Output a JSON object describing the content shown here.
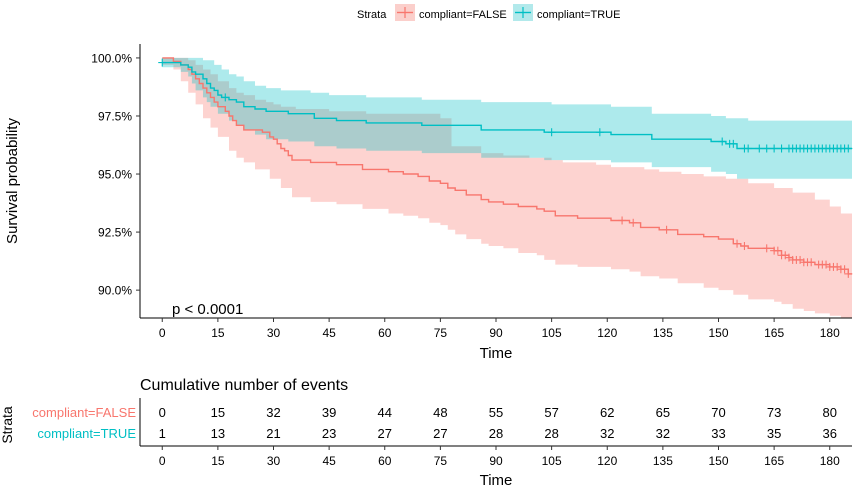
{
  "legend": {
    "title": "Strata",
    "items": [
      {
        "label": "compliant=FALSE",
        "color": "#F8766D"
      },
      {
        "label": "compliant=TRUE",
        "color": "#00BFC4"
      }
    ]
  },
  "chart_data": [
    {
      "type": "line",
      "subtype": "kaplan-meier survival curve with confidence bands",
      "xlabel": "Time",
      "ylabel": "Survival probability",
      "xlim": [
        -6,
        186
      ],
      "ylim": [
        88.8,
        100.6
      ],
      "xticks": [
        0,
        15,
        30,
        45,
        60,
        75,
        90,
        105,
        120,
        135,
        150,
        165,
        180
      ],
      "yticks": [
        90.0,
        92.5,
        95.0,
        97.5,
        100.0
      ],
      "ytick_labels": [
        "90.0%",
        "92.5%",
        "95.0%",
        "97.5%",
        "100.0%"
      ],
      "grid": false,
      "legend_position": "top",
      "annotation": "p < 0.0001",
      "series": [
        {
          "name": "compliant=FALSE",
          "color": "#F8766D",
          "fill": "#FBCFCB",
          "steps": [
            [
              0,
              100.0
            ],
            [
              3,
              99.85
            ],
            [
              5,
              99.7
            ],
            [
              7,
              99.5
            ],
            [
              8,
              99.3
            ],
            [
              9,
              99.1
            ],
            [
              10,
              98.9
            ],
            [
              11,
              98.7
            ],
            [
              12,
              98.5
            ],
            [
              13,
              98.3
            ],
            [
              14,
              98.1
            ],
            [
              15,
              97.9
            ],
            [
              17,
              97.7
            ],
            [
              18,
              97.5
            ],
            [
              19,
              97.3
            ],
            [
              20,
              97.1
            ],
            [
              22,
              96.9
            ],
            [
              27,
              96.8
            ],
            [
              29,
              96.6
            ],
            [
              30,
              96.5
            ],
            [
              31,
              96.3
            ],
            [
              32,
              96.1
            ],
            [
              33,
              96.0
            ],
            [
              34,
              95.8
            ],
            [
              35,
              95.6
            ],
            [
              40,
              95.5
            ],
            [
              47,
              95.4
            ],
            [
              54,
              95.2
            ],
            [
              61,
              95.1
            ],
            [
              65,
              95.0
            ],
            [
              69,
              94.9
            ],
            [
              72,
              94.7
            ],
            [
              75,
              94.6
            ],
            [
              77,
              94.4
            ],
            [
              79,
              94.3
            ],
            [
              82,
              94.1
            ],
            [
              86,
              93.9
            ],
            [
              88,
              93.8
            ],
            [
              92,
              93.7
            ],
            [
              96,
              93.6
            ],
            [
              101,
              93.5
            ],
            [
              103,
              93.4
            ],
            [
              106,
              93.2
            ],
            [
              112,
              93.1
            ],
            [
              121,
              93.0
            ],
            [
              126,
              92.9
            ],
            [
              129,
              92.7
            ],
            [
              134,
              92.6
            ],
            [
              139,
              92.4
            ],
            [
              146,
              92.3
            ],
            [
              150,
              92.2
            ],
            [
              154,
              92.0
            ],
            [
              156,
              91.9
            ],
            [
              158,
              91.8
            ],
            [
              165,
              91.7
            ],
            [
              167,
              91.5
            ],
            [
              169,
              91.4
            ],
            [
              170,
              91.3
            ],
            [
              173,
              91.2
            ],
            [
              176,
              91.1
            ],
            [
              180,
              91.0
            ],
            [
              183,
              90.9
            ],
            [
              185,
              90.7
            ],
            [
              186,
              90.7
            ]
          ],
          "ci_upper": [
            [
              0,
              100.0
            ],
            [
              3,
              100.0
            ],
            [
              7,
              99.9
            ],
            [
              9,
              99.7
            ],
            [
              11,
              99.5
            ],
            [
              13,
              99.3
            ],
            [
              15,
              99.0
            ],
            [
              18,
              98.7
            ],
            [
              20,
              98.5
            ],
            [
              22,
              98.4
            ],
            [
              25,
              98.2
            ],
            [
              28,
              98.1
            ],
            [
              30,
              98.0
            ],
            [
              32,
              97.9
            ],
            [
              36,
              97.8
            ],
            [
              45,
              97.7
            ],
            [
              55,
              97.6
            ],
            [
              65,
              97.6
            ],
            [
              75,
              97.4
            ],
            [
              78,
              96.2
            ],
            [
              86,
              95.9
            ],
            [
              92,
              95.8
            ],
            [
              99,
              95.7
            ],
            [
              105,
              95.6
            ],
            [
              108,
              95.5
            ],
            [
              117,
              95.4
            ],
            [
              121,
              95.3
            ],
            [
              130,
              95.2
            ],
            [
              134,
              95.1
            ],
            [
              140,
              95.0
            ],
            [
              146,
              94.9
            ],
            [
              152,
              94.8
            ],
            [
              158,
              94.6
            ],
            [
              165,
              94.4
            ],
            [
              170,
              94.2
            ],
            [
              176,
              93.9
            ],
            [
              180,
              93.6
            ],
            [
              183,
              93.3
            ],
            [
              186,
              93.1
            ]
          ],
          "ci_lower": [
            [
              0,
              99.7
            ],
            [
              3,
              99.5
            ],
            [
              5,
              99.0
            ],
            [
              7,
              98.5
            ],
            [
              9,
              98.0
            ],
            [
              11,
              97.4
            ],
            [
              13,
              97.0
            ],
            [
              15,
              96.6
            ],
            [
              18,
              96.0
            ],
            [
              20,
              95.7
            ],
            [
              22,
              95.5
            ],
            [
              25,
              95.2
            ],
            [
              29,
              94.8
            ],
            [
              32,
              94.4
            ],
            [
              35,
              94.0
            ],
            [
              40,
              93.8
            ],
            [
              47,
              93.7
            ],
            [
              54,
              93.5
            ],
            [
              61,
              93.3
            ],
            [
              65,
              93.2
            ],
            [
              69,
              93.1
            ],
            [
              72,
              92.9
            ],
            [
              75,
              92.8
            ],
            [
              77,
              92.6
            ],
            [
              79,
              92.4
            ],
            [
              82,
              92.2
            ],
            [
              86,
              92.0
            ],
            [
              88,
              91.9
            ],
            [
              92,
              91.8
            ],
            [
              96,
              91.6
            ],
            [
              101,
              91.5
            ],
            [
              103,
              91.3
            ],
            [
              106,
              91.1
            ],
            [
              112,
              91.0
            ],
            [
              121,
              90.9
            ],
            [
              126,
              90.8
            ],
            [
              129,
              90.6
            ],
            [
              134,
              90.5
            ],
            [
              139,
              90.3
            ],
            [
              146,
              90.1
            ],
            [
              150,
              90.0
            ],
            [
              154,
              89.8
            ],
            [
              158,
              89.6
            ],
            [
              165,
              89.5
            ],
            [
              167,
              89.4
            ],
            [
              170,
              89.2
            ],
            [
              173,
              89.1
            ],
            [
              176,
              89.0
            ],
            [
              180,
              88.9
            ],
            [
              183,
              88.8
            ],
            [
              186,
              88.8
            ]
          ],
          "censor_times": [
            124,
            127,
            136,
            155,
            157,
            163,
            165,
            166,
            167,
            168,
            169,
            170,
            171,
            172,
            173,
            174,
            175,
            177,
            178,
            179,
            180,
            181,
            182,
            183,
            184,
            185
          ]
        },
        {
          "name": "compliant=TRUE",
          "color": "#00BFC4",
          "fill": "#B2E9EB",
          "steps": [
            [
              0,
              99.8
            ],
            [
              5,
              99.7
            ],
            [
              7,
              99.6
            ],
            [
              8,
              99.4
            ],
            [
              9,
              99.3
            ],
            [
              11,
              99.1
            ],
            [
              12,
              98.9
            ],
            [
              13,
              98.7
            ],
            [
              14,
              98.6
            ],
            [
              15,
              98.4
            ],
            [
              16,
              98.3
            ],
            [
              18,
              98.2
            ],
            [
              20,
              98.1
            ],
            [
              22,
              97.9
            ],
            [
              25,
              97.8
            ],
            [
              28,
              97.7
            ],
            [
              34,
              97.6
            ],
            [
              41,
              97.4
            ],
            [
              47,
              97.3
            ],
            [
              55,
              97.2
            ],
            [
              70,
              97.1
            ],
            [
              86,
              96.9
            ],
            [
              103,
              96.8
            ],
            [
              121,
              96.7
            ],
            [
              132,
              96.5
            ],
            [
              148,
              96.4
            ],
            [
              152,
              96.3
            ],
            [
              155,
              96.1
            ],
            [
              186,
              96.1
            ]
          ],
          "ci_upper": [
            [
              0,
              100.0
            ],
            [
              8,
              100.0
            ],
            [
              11,
              99.9
            ],
            [
              14,
              99.7
            ],
            [
              16,
              99.5
            ],
            [
              18,
              99.3
            ],
            [
              20,
              99.2
            ],
            [
              22,
              99.0
            ],
            [
              25,
              98.8
            ],
            [
              28,
              98.7
            ],
            [
              32,
              98.6
            ],
            [
              40,
              98.5
            ],
            [
              45,
              98.4
            ],
            [
              55,
              98.3
            ],
            [
              70,
              98.2
            ],
            [
              86,
              98.1
            ],
            [
              105,
              98.0
            ],
            [
              121,
              97.9
            ],
            [
              132,
              97.6
            ],
            [
              148,
              97.5
            ],
            [
              152,
              97.4
            ],
            [
              158,
              97.3
            ],
            [
              186,
              97.3
            ]
          ],
          "ci_lower": [
            [
              0,
              99.6
            ],
            [
              5,
              99.4
            ],
            [
              7,
              99.2
            ],
            [
              8,
              98.9
            ],
            [
              9,
              98.6
            ],
            [
              11,
              98.3
            ],
            [
              12,
              98.1
            ],
            [
              13,
              97.9
            ],
            [
              15,
              97.6
            ],
            [
              18,
              97.3
            ],
            [
              20,
              97.1
            ],
            [
              22,
              96.9
            ],
            [
              25,
              96.7
            ],
            [
              28,
              96.5
            ],
            [
              34,
              96.4
            ],
            [
              41,
              96.2
            ],
            [
              47,
              96.1
            ],
            [
              55,
              96.0
            ],
            [
              70,
              95.9
            ],
            [
              86,
              95.7
            ],
            [
              103,
              95.6
            ],
            [
              121,
              95.5
            ],
            [
              132,
              95.3
            ],
            [
              148,
              95.1
            ],
            [
              152,
              95.0
            ],
            [
              155,
              94.8
            ],
            [
              186,
              94.7
            ]
          ],
          "censor_times": [
            0,
            17,
            105,
            118,
            151,
            153,
            154,
            157,
            158,
            161,
            163,
            165,
            167,
            169,
            170,
            171,
            172,
            173,
            174,
            175,
            176,
            177,
            178,
            179,
            180,
            181,
            182,
            183,
            184,
            185
          ]
        }
      ]
    },
    {
      "type": "table",
      "title": "Cumulative number of events",
      "xlabel": "Time",
      "ylabel": "Strata",
      "columns": [
        0,
        15,
        30,
        45,
        60,
        75,
        90,
        105,
        120,
        135,
        150,
        165,
        180
      ],
      "rows": [
        {
          "label": "compliant=FALSE",
          "color": "#F8766D",
          "values": [
            0,
            15,
            32,
            39,
            44,
            48,
            55,
            57,
            62,
            65,
            70,
            73,
            80
          ]
        },
        {
          "label": "compliant=TRUE",
          "color": "#00BFC4",
          "values": [
            1,
            13,
            21,
            23,
            27,
            27,
            28,
            28,
            32,
            32,
            33,
            35,
            36
          ]
        }
      ]
    }
  ]
}
